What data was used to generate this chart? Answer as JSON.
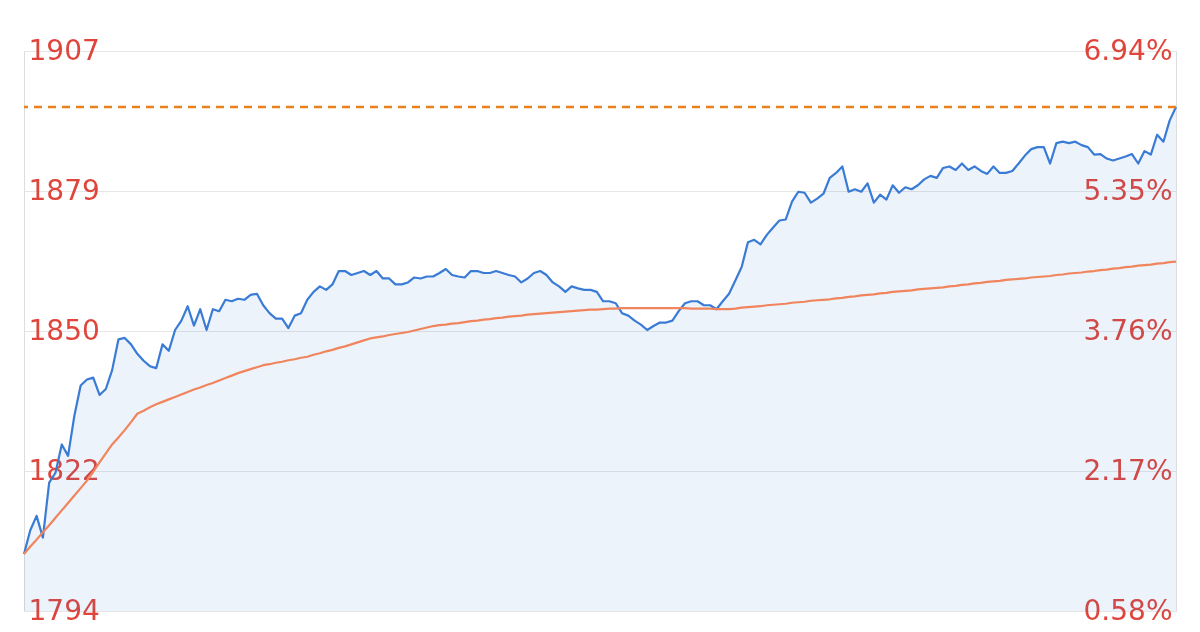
{
  "chart_data": {
    "type": "area",
    "categories": [
      null,
      null,
      null,
      null,
      null,
      null,
      null,
      null,
      null,
      null,
      null,
      null,
      null,
      null,
      null,
      null,
      null,
      null,
      null,
      null,
      null,
      null,
      null,
      null,
      null,
      null,
      null,
      null,
      null,
      null,
      null,
      null,
      null,
      null,
      null,
      null,
      null,
      null,
      null,
      null,
      null,
      null,
      null,
      null,
      null,
      null,
      null,
      null,
      null,
      null,
      null,
      null,
      null,
      null,
      null,
      null,
      null,
      null,
      null,
      null,
      null,
      null,
      null,
      null,
      null,
      null,
      null,
      null,
      null,
      null,
      null,
      null,
      null,
      null,
      null,
      null,
      null,
      null,
      null,
      null,
      null,
      null,
      null,
      null,
      null,
      null,
      null,
      null,
      null,
      null,
      null,
      null,
      null,
      null,
      null,
      null,
      null,
      null,
      null,
      null,
      null,
      null,
      null,
      null,
      null,
      null,
      null,
      null,
      null,
      null,
      null,
      null,
      null,
      null,
      null,
      null,
      null,
      null,
      null,
      null,
      null,
      null,
      null,
      null,
      null,
      null,
      null,
      null,
      null,
      null,
      null,
      null,
      null,
      null,
      null,
      null,
      null,
      null,
      null,
      null,
      null,
      null,
      null,
      null,
      null,
      null,
      null,
      null,
      null,
      null,
      null,
      null,
      null,
      null,
      null,
      null,
      null,
      null,
      null,
      null,
      null,
      null,
      null,
      null,
      null,
      null,
      null,
      null,
      null,
      null,
      null,
      null,
      null,
      null,
      null,
      null,
      null,
      null,
      null,
      null,
      null,
      null,
      null,
      null
    ],
    "series": [
      {
        "color": "#3a7bd5",
        "values": [
          1805.5,
          1810.3,
          1813.2,
          1808.8,
          1819.9,
          1821.9,
          1827.6,
          1825.3,
          1833.4,
          1839.5,
          1840.7,
          1841.1,
          1837.6,
          1838.8,
          1842.6,
          1848.8,
          1849.1,
          1847.8,
          1845.9,
          1844.5,
          1843.4,
          1843.0,
          1847.8,
          1846.5,
          1850.7,
          1852.6,
          1855.5,
          1851.6,
          1854.9,
          1850.7,
          1854.9,
          1854.5,
          1856.8,
          1856.5,
          1857.0,
          1856.8,
          1857.8,
          1858.0,
          1855.7,
          1854.1,
          1853.0,
          1853.0,
          1851.1,
          1853.6,
          1854.1,
          1856.8,
          1858.4,
          1859.5,
          1858.8,
          1859.9,
          1862.6,
          1862.6,
          1861.8,
          1862.2,
          1862.6,
          1861.8,
          1862.6,
          1861.1,
          1861.1,
          1859.9,
          1859.9,
          1860.3,
          1861.3,
          1861.1,
          1861.5,
          1861.5,
          1862.2,
          1863.0,
          1861.8,
          1861.5,
          1861.3,
          1862.6,
          1862.6,
          1862.2,
          1862.2,
          1862.6,
          1862.2,
          1861.8,
          1861.5,
          1860.3,
          1861.1,
          1862.2,
          1862.6,
          1861.8,
          1860.3,
          1859.5,
          1858.4,
          1859.5,
          1859.1,
          1858.8,
          1858.8,
          1858.4,
          1856.5,
          1856.5,
          1856.1,
          1854.1,
          1853.6,
          1852.6,
          1851.8,
          1850.7,
          1851.5,
          1852.2,
          1852.2,
          1852.6,
          1854.5,
          1856.1,
          1856.5,
          1856.5,
          1855.7,
          1855.7,
          1854.9,
          1856.5,
          1858.0,
          1860.7,
          1863.4,
          1868.4,
          1868.9,
          1868.0,
          1869.9,
          1871.4,
          1872.8,
          1873.0,
          1876.6,
          1878.6,
          1878.4,
          1876.4,
          1877.2,
          1878.2,
          1881.4,
          1882.4,
          1883.7,
          1878.6,
          1879.1,
          1878.6,
          1880.3,
          1876.4,
          1878.0,
          1877.0,
          1879.9,
          1878.4,
          1879.5,
          1879.1,
          1879.9,
          1881.1,
          1881.8,
          1881.4,
          1883.4,
          1883.7,
          1883.0,
          1884.3,
          1883.0,
          1883.7,
          1882.8,
          1882.2,
          1883.7,
          1882.4,
          1882.4,
          1882.8,
          1884.3,
          1885.9,
          1887.2,
          1887.6,
          1887.6,
          1884.3,
          1888.4,
          1888.7,
          1888.4,
          1888.7,
          1888.0,
          1887.6,
          1886.1,
          1886.2,
          1885.3,
          1884.9,
          1885.3,
          1885.7,
          1886.2,
          1884.3,
          1886.8,
          1886.1,
          1890.1,
          1888.7,
          1893.0,
          1895.7
        ]
      },
      {
        "type": "line",
        "color": "#f0845c",
        "values": [
          1805.5,
          1807.0,
          1808.4,
          1809.9,
          1811.3,
          1812.8,
          1814.3,
          1815.8,
          1817.3,
          1818.8,
          1820.3,
          1822.1,
          1824.0,
          1825.8,
          1827.6,
          1829.0,
          1830.5,
          1832.1,
          1833.8,
          1834.4,
          1835.1,
          1835.7,
          1836.2,
          1836.7,
          1837.2,
          1837.7,
          1838.2,
          1838.7,
          1839.1,
          1839.6,
          1840.0,
          1840.5,
          1841.0,
          1841.5,
          1842.0,
          1842.4,
          1842.8,
          1843.2,
          1843.6,
          1843.8,
          1844.1,
          1844.3,
          1844.6,
          1844.8,
          1845.1,
          1845.3,
          1845.7,
          1846.0,
          1846.4,
          1846.7,
          1847.1,
          1847.4,
          1847.8,
          1848.2,
          1848.6,
          1849.0,
          1849.2,
          1849.4,
          1849.7,
          1849.9,
          1850.1,
          1850.3,
          1850.6,
          1850.9,
          1851.2,
          1851.5,
          1851.7,
          1851.8,
          1852.0,
          1852.1,
          1852.3,
          1852.5,
          1852.6,
          1852.8,
          1852.9,
          1853.1,
          1853.2,
          1853.4,
          1853.5,
          1853.6,
          1853.8,
          1853.9,
          1854.0,
          1854.1,
          1854.2,
          1854.3,
          1854.4,
          1854.5,
          1854.6,
          1854.7,
          1854.8,
          1854.8,
          1854.9,
          1855.0,
          1855.0,
          1855.1,
          1855.1,
          1855.1,
          1855.1,
          1855.1,
          1855.1,
          1855.1,
          1855.1,
          1855.1,
          1855.1,
          1855.1,
          1855.0,
          1855.0,
          1855.0,
          1855.0,
          1854.9,
          1854.9,
          1854.9,
          1855.0,
          1855.2,
          1855.3,
          1855.4,
          1855.5,
          1855.7,
          1855.8,
          1855.9,
          1856.0,
          1856.2,
          1856.3,
          1856.4,
          1856.6,
          1856.7,
          1856.8,
          1856.9,
          1857.1,
          1857.2,
          1857.4,
          1857.5,
          1857.7,
          1857.8,
          1857.9,
          1858.1,
          1858.2,
          1858.4,
          1858.5,
          1858.6,
          1858.7,
          1858.9,
          1859.0,
          1859.1,
          1859.2,
          1859.3,
          1859.5,
          1859.6,
          1859.8,
          1859.9,
          1860.1,
          1860.2,
          1860.4,
          1860.5,
          1860.6,
          1860.8,
          1860.9,
          1861.0,
          1861.1,
          1861.3,
          1861.4,
          1861.5,
          1861.6,
          1861.8,
          1861.9,
          1862.1,
          1862.2,
          1862.3,
          1862.5,
          1862.6,
          1862.8,
          1862.9,
          1863.1,
          1863.2,
          1863.4,
          1863.5,
          1863.7,
          1863.8,
          1863.9,
          1864.1,
          1864.2,
          1864.4,
          1864.5
        ]
      }
    ],
    "ylim": [
      1794,
      1907
    ],
    "yticks": [
      1794,
      {
        "value": 1822.25,
        "label": "1822"
      },
      {
        "value": 1850.5,
        "label": "1850"
      },
      {
        "value": 1878.75,
        "label": "1879"
      },
      1907
    ],
    "y2lim": [
      0.58,
      6.94
    ],
    "y2ticks": [
      {
        "value": 0.58,
        "label": "0.58%"
      },
      {
        "value": 2.17,
        "label": "2.17%"
      },
      {
        "value": 3.76,
        "label": "3.76%"
      },
      {
        "value": 5.35,
        "label": "5.35%"
      },
      {
        "value": 6.94,
        "label": "6.94%"
      }
    ],
    "ref_lines": [
      {
        "axis": "y",
        "value": 1895.7,
        "color": "#e8801e",
        "line_style": "dashed"
      }
    ],
    "grid": "y"
  }
}
